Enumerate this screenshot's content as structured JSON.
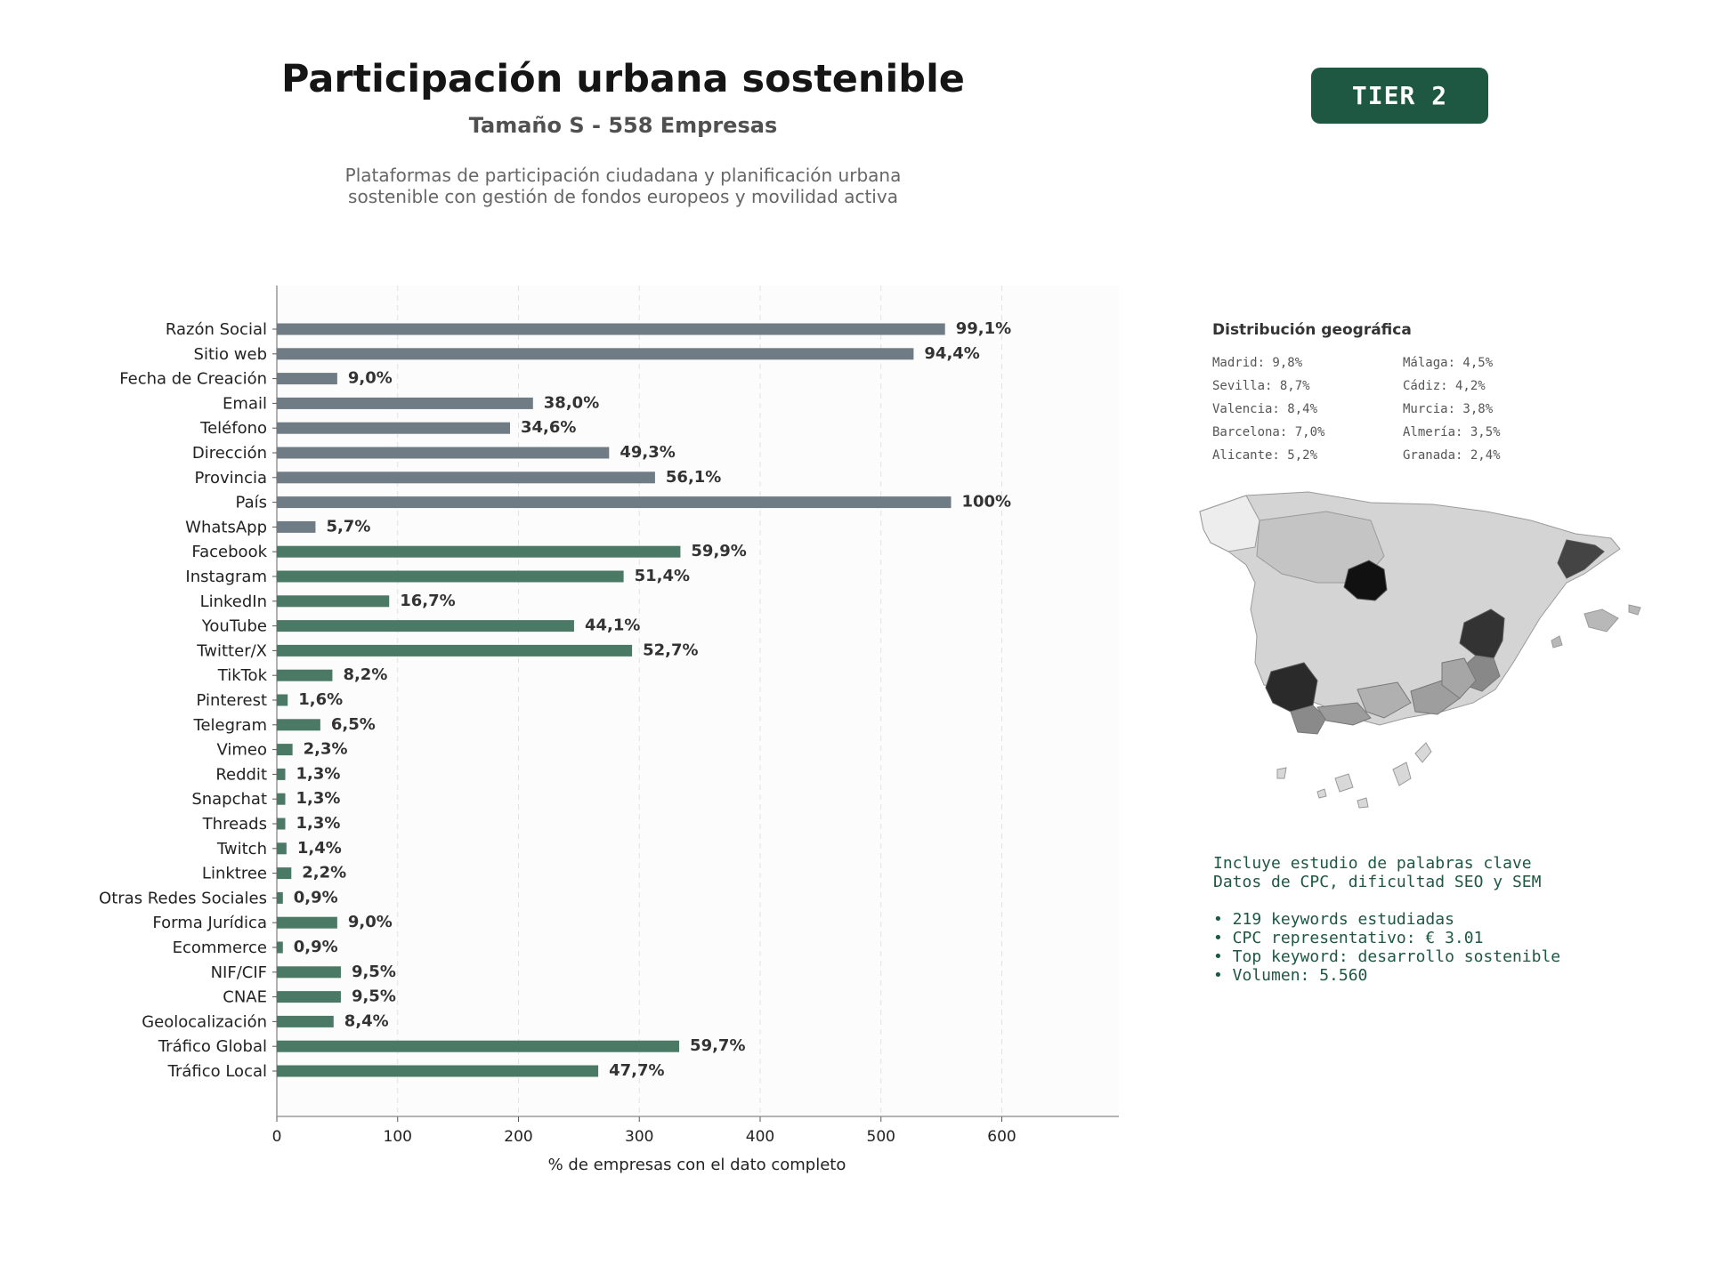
{
  "header": {
    "title": "Participación urbana sostenible",
    "subtitle": "Tamaño S - 558 Empresas",
    "description_lines": [
      "Plataformas de participación ciudadana y planificación urbana",
      "sostenible con gestión de fondos europeos y movilidad activa"
    ],
    "badge": "TIER 2"
  },
  "colors": {
    "contact_bars": "#6f7b85",
    "social_bars": "#4a7a66",
    "badge_bg": "#1e5742",
    "keyword_text": "#1e5742"
  },
  "chart_data": {
    "type": "bar",
    "orientation": "horizontal",
    "xlabel": "% de empresas con el dato completo",
    "xlim": [
      0,
      700
    ],
    "xticks": [
      0,
      100,
      200,
      300,
      400,
      500,
      600
    ],
    "grid": "vertical dashed",
    "categories": [
      "Razón Social",
      "Sitio web",
      "Fecha de Creación",
      "Email",
      "Teléfono",
      "Dirección",
      "Provincia",
      "País",
      "WhatsApp",
      "Facebook",
      "Instagram",
      "LinkedIn",
      "YouTube",
      "Twitter/X",
      "TikTok",
      "Pinterest",
      "Telegram",
      "Vimeo",
      "Reddit",
      "Snapchat",
      "Threads",
      "Twitch",
      "Linktree",
      "Otras Redes Sociales",
      "Forma Jurídica",
      "Ecommerce",
      "NIF/CIF",
      "CNAE",
      "Geolocalización",
      "Tráfico Global",
      "Tráfico Local"
    ],
    "values": [
      553,
      527,
      50,
      212,
      193,
      275,
      313,
      558,
      32,
      334,
      287,
      93,
      246,
      294,
      46,
      9,
      36,
      13,
      7,
      7,
      7,
      8,
      12,
      5,
      50,
      5,
      53,
      53,
      47,
      333,
      266
    ],
    "labels": [
      "99,1%",
      "94,4%",
      "9,0%",
      "38,0%",
      "34,6%",
      "49,3%",
      "56,1%",
      "100%",
      "5,7%",
      "59,9%",
      "51,4%",
      "16,7%",
      "44,1%",
      "52,7%",
      "8,2%",
      "1,6%",
      "6,5%",
      "2,3%",
      "1,3%",
      "1,3%",
      "1,3%",
      "1,4%",
      "2,2%",
      "0,9%",
      "9,0%",
      "0,9%",
      "9,5%",
      "9,5%",
      "8,4%",
      "59,7%",
      "47,7%"
    ],
    "groups": [
      "contact",
      "contact",
      "contact",
      "contact",
      "contact",
      "contact",
      "contact",
      "contact",
      "contact",
      "social",
      "social",
      "social",
      "social",
      "social",
      "social",
      "social",
      "social",
      "social",
      "social",
      "social",
      "social",
      "social",
      "social",
      "social",
      "social",
      "social",
      "social",
      "social",
      "social",
      "social",
      "social"
    ]
  },
  "geo": {
    "title": "Distribución geográfica",
    "items": [
      "Madrid: 9,8%",
      "Málaga: 4,5%",
      "Sevilla: 8,7%",
      "Cádiz: 4,2%",
      "Valencia: 8,4%",
      "Murcia: 3,8%",
      "Barcelona: 7,0%",
      "Almería: 3,5%",
      "Alicante: 5,2%",
      "Granada: 2,4%"
    ]
  },
  "keywords": {
    "line1": "Incluye estudio de palabras clave",
    "line2": "Datos de CPC, dificultad SEO y SEM",
    "bullet1": "• 219 keywords estudiadas",
    "bullet2": "• CPC representativo: € 3.01",
    "bullet3": "• Top keyword: desarrollo sostenible",
    "bullet4": "• Volumen: 5.560"
  }
}
